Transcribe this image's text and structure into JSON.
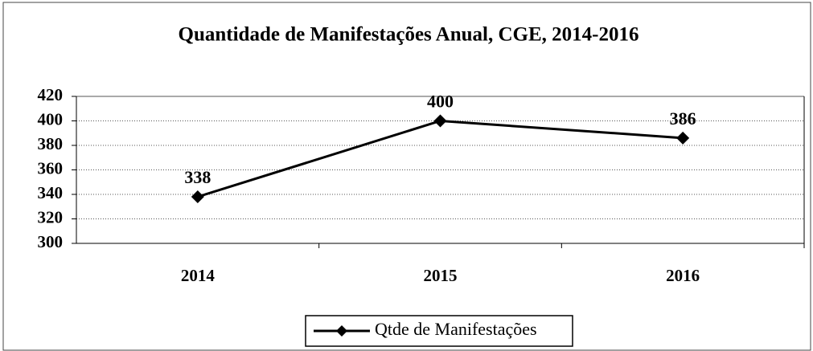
{
  "chart_data": {
    "type": "line",
    "title": "Quantidade de Manifestações Anual, CGE, 2014-2016",
    "categories": [
      "2014",
      "2015",
      "2016"
    ],
    "series": [
      {
        "name": "Qtde de Manifestações",
        "color": "#000000",
        "values": [
          338,
          400,
          386
        ]
      }
    ],
    "ylim": [
      300,
      420
    ],
    "yticks": [
      300,
      320,
      340,
      360,
      380,
      400,
      420
    ],
    "grid": true,
    "legend": "bottom"
  }
}
